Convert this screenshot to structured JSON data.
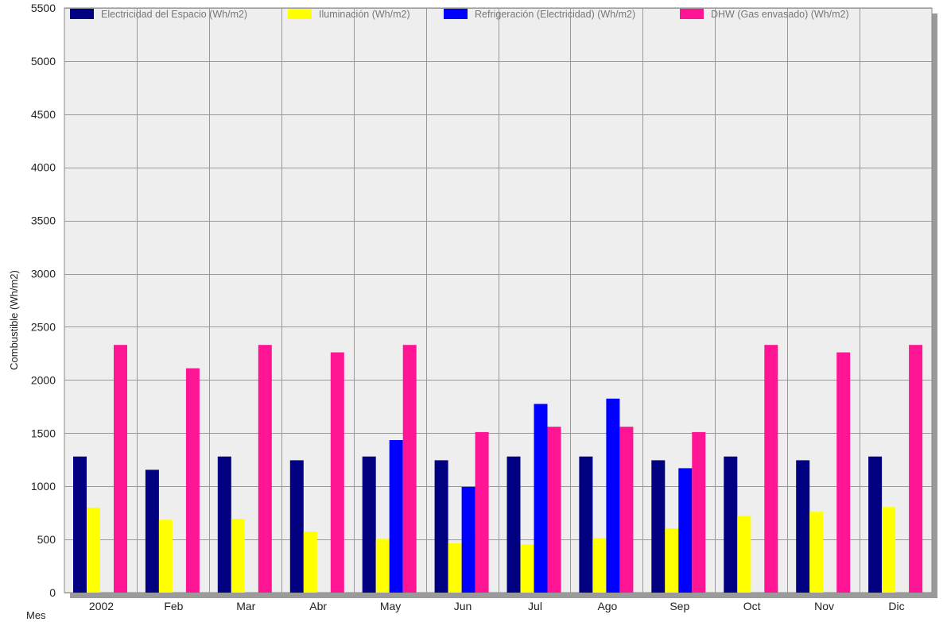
{
  "chart_data": {
    "type": "bar",
    "title": "",
    "xlabel": "Mes",
    "ylabel": "Combustible (Wh/m2)",
    "categories": [
      "2002",
      "Feb",
      "Mar",
      "Abr",
      "May",
      "Jun",
      "Jul",
      "Ago",
      "Sep",
      "Oct",
      "Nov",
      "Dic"
    ],
    "ylim": [
      0,
      5500
    ],
    "yticks": [
      0,
      500,
      1000,
      1500,
      2000,
      2500,
      3000,
      3500,
      4000,
      4500,
      5000,
      5500
    ],
    "grid": true,
    "legend_position": "top",
    "plot_background": "#eeeeee",
    "grid_color": "#999999",
    "series": [
      {
        "name": "Electricidad del Espacio (Wh/m2)",
        "color": "#000080",
        "values": [
          1280,
          1155,
          1280,
          1245,
          1280,
          1245,
          1280,
          1280,
          1245,
          1280,
          1245,
          1280
        ]
      },
      {
        "name": "Iluminación (Wh/m2)",
        "color": "#ffff00",
        "values": [
          800,
          685,
          695,
          575,
          505,
          465,
          455,
          515,
          605,
          720,
          760,
          805
        ]
      },
      {
        "name": "Refrigeración (Electricidad) (Wh/m2)",
        "color": "#0000ff",
        "values": [
          0,
          0,
          0,
          0,
          1435,
          995,
          1775,
          1825,
          1170,
          0,
          0,
          0
        ]
      },
      {
        "name": "DHW (Gas envasado) (Wh/m2)",
        "color": "#ff1493",
        "values": [
          2330,
          2110,
          2330,
          2260,
          2330,
          1510,
          1560,
          1560,
          1510,
          2330,
          2260,
          2330
        ]
      }
    ]
  }
}
